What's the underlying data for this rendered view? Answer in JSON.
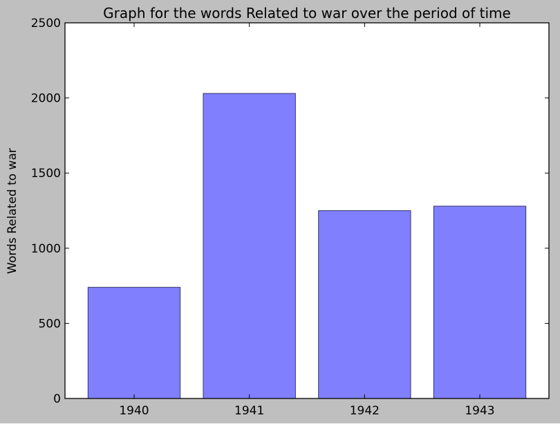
{
  "chart_data": {
    "type": "bar",
    "title": "Graph for the words Related to war over the period of time",
    "xlabel": "",
    "ylabel": "Words Related to war",
    "categories": [
      "1940",
      "1941",
      "1942",
      "1943"
    ],
    "values": [
      740,
      2030,
      1250,
      1280
    ],
    "ylim": [
      0,
      2500
    ],
    "yticks": [
      0,
      500,
      1000,
      1500,
      2000,
      2500
    ],
    "grid": false,
    "bar_color": "#8080ff",
    "bar_edge_color": "#333366",
    "figure_background": "#bfbfbf",
    "plot_background": "#ffffff"
  }
}
